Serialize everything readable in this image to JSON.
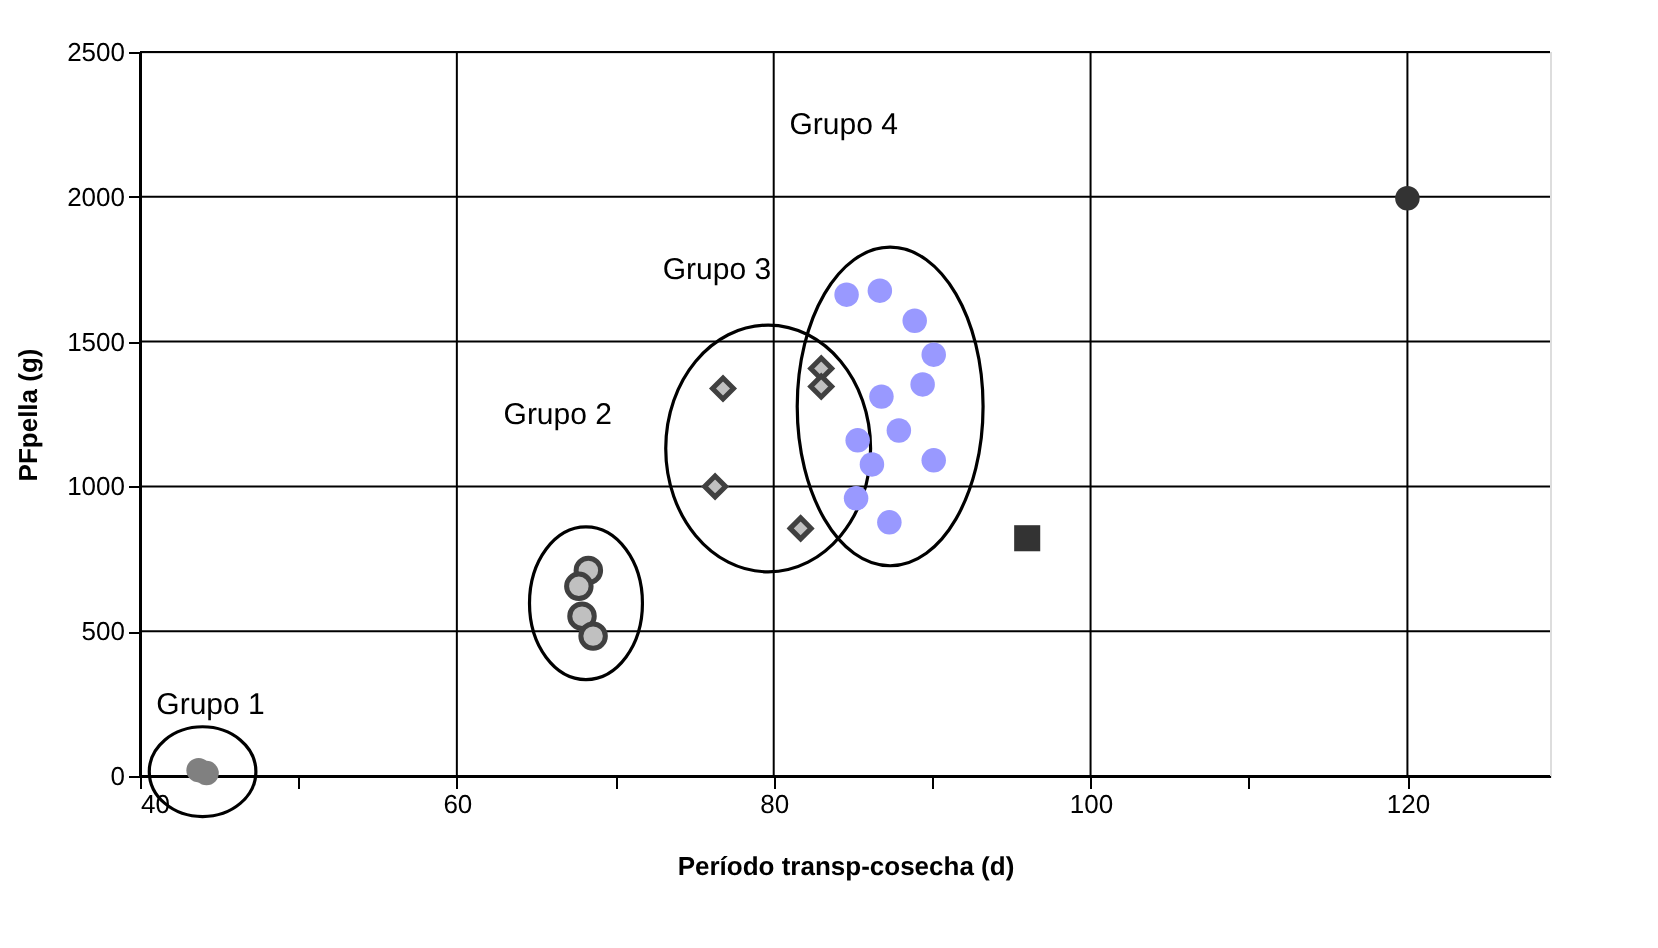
{
  "chart_data": {
    "type": "scatter",
    "xlabel": "Período transp-cosecha (d)",
    "ylabel": "PFpella (g)",
    "xlim": [
      40,
      129
    ],
    "ylim": [
      0,
      2500
    ],
    "xticks": [
      40,
      {
        "value": 50,
        "label": null
      },
      60,
      {
        "value": 70,
        "label": null
      },
      80,
      {
        "value": 90,
        "label": null
      },
      100,
      {
        "value": 110,
        "label": null
      },
      120
    ],
    "yticks": [
      0,
      500,
      1000,
      1500,
      2000,
      2500
    ],
    "grid": true,
    "series": [
      {
        "color": "#808080",
        "marker": "circle",
        "x": [
          43.7,
          44.2
        ],
        "values": [
          20,
          10
        ]
      },
      {
        "color": "#c0c0c0",
        "marker": "circle",
        "x": [
          68.3,
          67.7,
          67.9,
          68.6
        ],
        "values": [
          710,
          655,
          552,
          483
        ]
      },
      {
        "color": "#c0c0c0",
        "marker": "diamond",
        "x": [
          76.8,
          76.3,
          81.7,
          83.0,
          83.0
        ],
        "values": [
          1338,
          1000,
          855,
          1407,
          1345
        ]
      },
      {
        "color": "#9999ff",
        "marker": "circle",
        "x": [
          84.6,
          86.7,
          88.9,
          90.1,
          89.4,
          86.8,
          87.9,
          85.3,
          86.2,
          90.1,
          85.2,
          87.3
        ],
        "values": [
          1662,
          1676,
          1572,
          1455,
          1352,
          1310,
          1193,
          1159,
          1076,
          1090,
          959,
          876
        ]
      },
      {
        "color": "#333333",
        "marker": "square",
        "x": [
          96.0
        ],
        "values": [
          821
        ]
      },
      {
        "color": "#333333",
        "marker": "circle",
        "x": [
          120.0
        ],
        "values": [
          1995
        ]
      }
    ],
    "annotations": [
      "Grupo 1",
      "Grupo 2",
      "Grupo 3",
      "Grupo 4"
    ]
  }
}
